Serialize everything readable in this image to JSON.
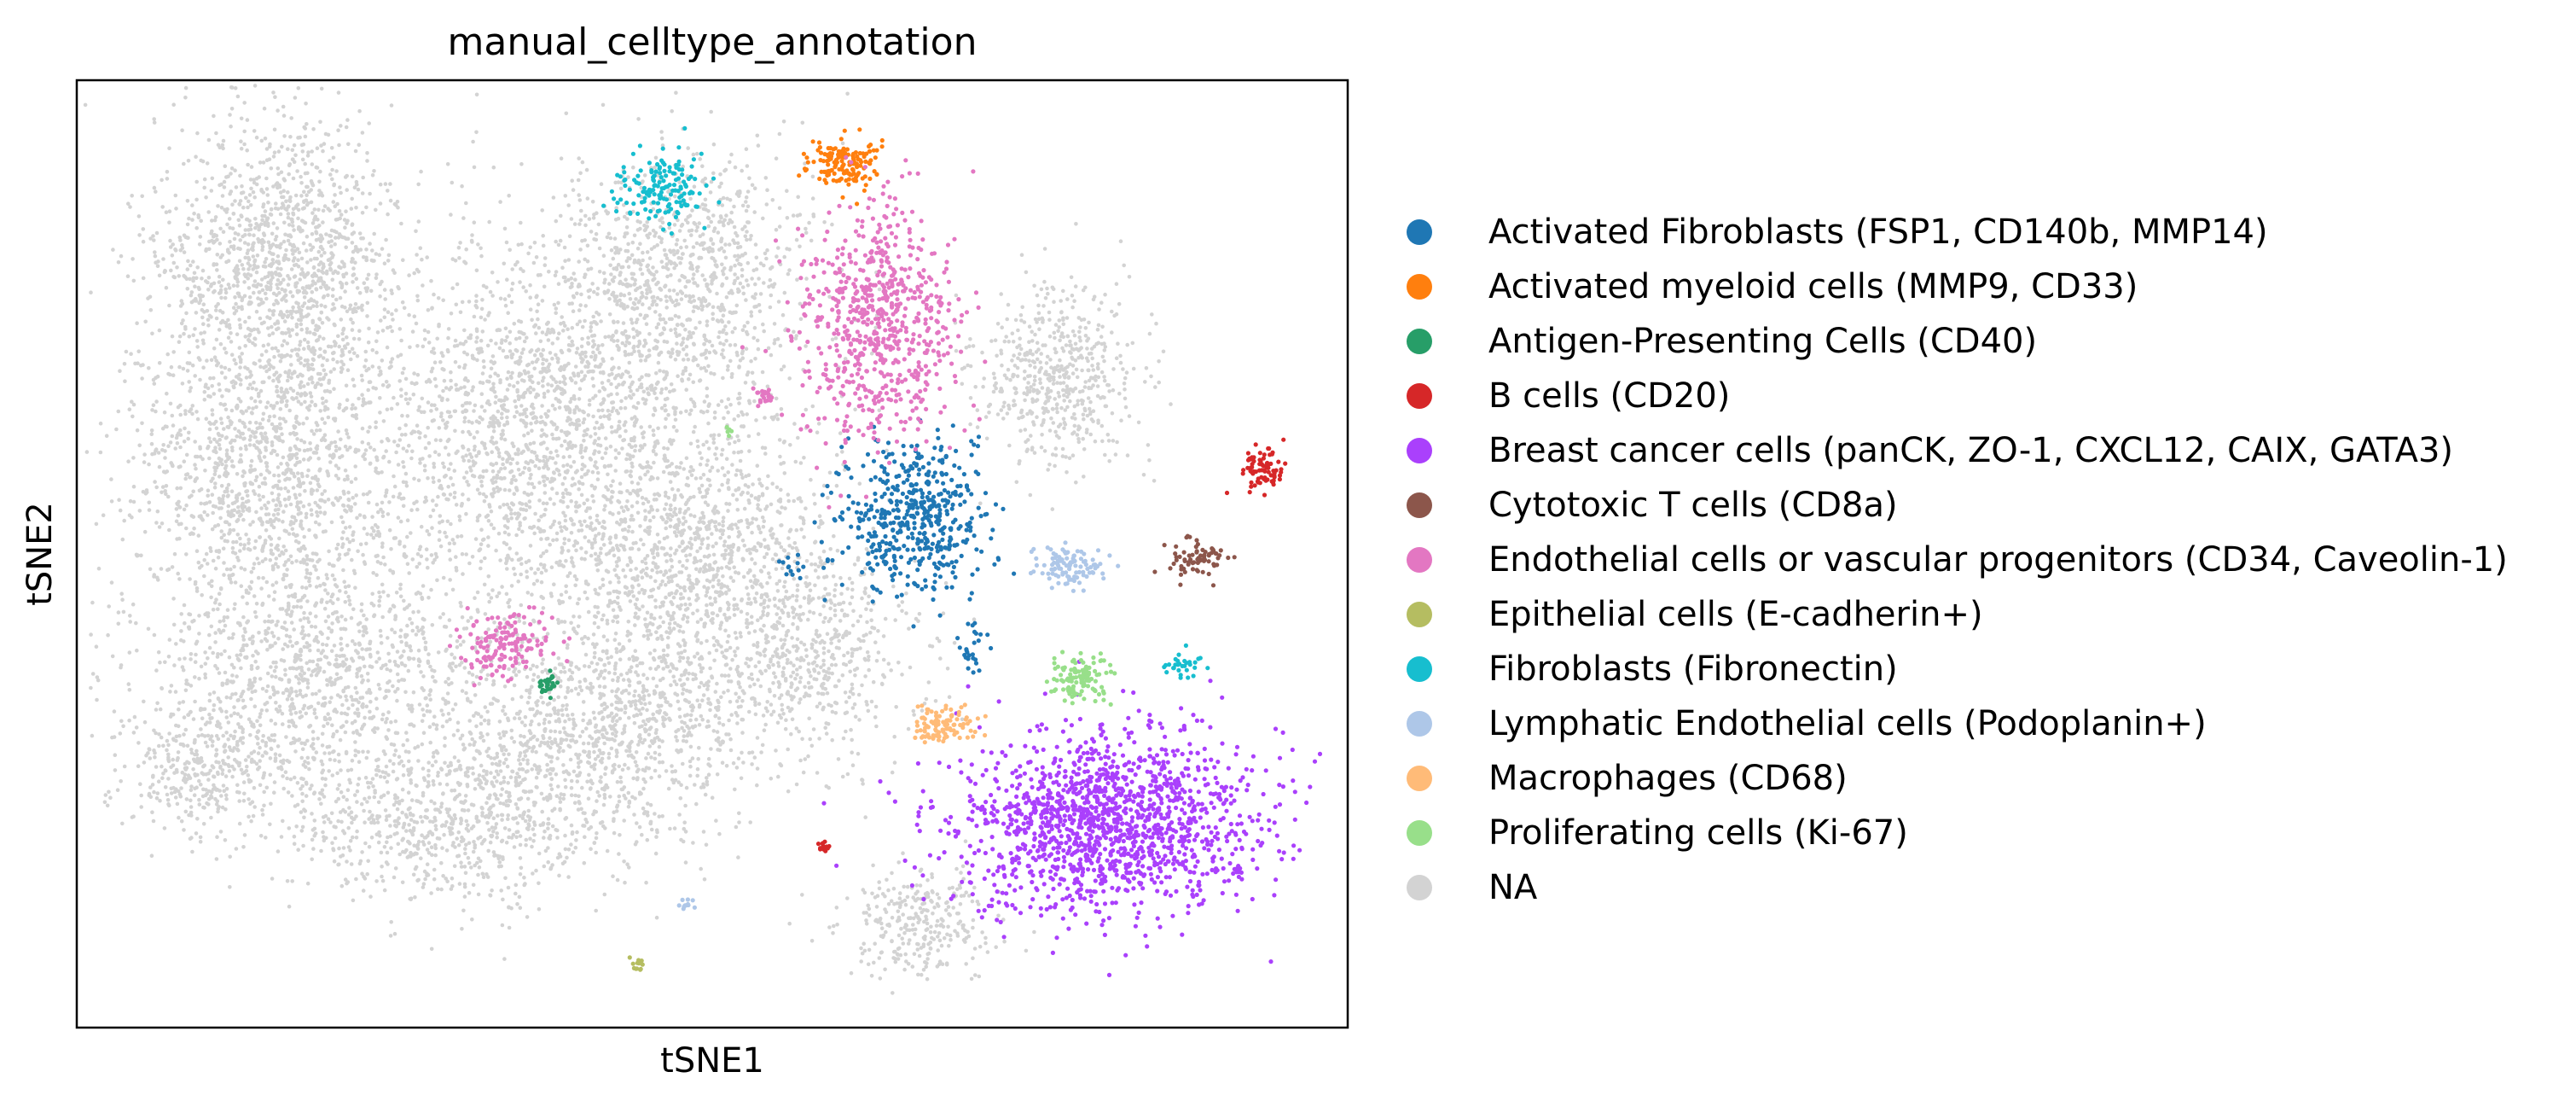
{
  "chart_data": {
    "type": "scatter",
    "title": "manual_celltype_annotation",
    "xlabel": "tSNE1",
    "ylabel": "tSNE2",
    "xticks": [],
    "yticks": [],
    "legend_position": "right",
    "series": [
      {
        "name": "Activated Fibroblasts (FSP1, CD140b, MMP14)",
        "color": "#1f77b4"
      },
      {
        "name": "Activated myeloid cells (MMP9, CD33)",
        "color": "#ff7f0e"
      },
      {
        "name": "Antigen-Presenting Cells (CD40)",
        "color": "#279e68"
      },
      {
        "name": "B cells (CD20)",
        "color": "#d62728"
      },
      {
        "name": "Breast cancer cells (panCK, ZO-1, CXCL12, CAIX, GATA3)",
        "color": "#aa40fc"
      },
      {
        "name": "Cytotoxic T cells (CD8a)",
        "color": "#8c564b"
      },
      {
        "name": "Endothelial cells or vascular progenitors (CD34, Caveolin-1)",
        "color": "#e377c2"
      },
      {
        "name": "Epithelial cells (E-cadherin+)",
        "color": "#b5bd61"
      },
      {
        "name": "Fibroblasts (Fibronectin)",
        "color": "#17becf"
      },
      {
        "name": "Lymphatic Endothelial cells (Podoplanin+)",
        "color": "#aec7e8"
      },
      {
        "name": "Macrophages (CD68)",
        "color": "#ffbb78"
      },
      {
        "name": "Proliferating cells (Ki-67)",
        "color": "#98df8a"
      },
      {
        "name": "NA",
        "color": "#d3d3d3"
      }
    ]
  }
}
